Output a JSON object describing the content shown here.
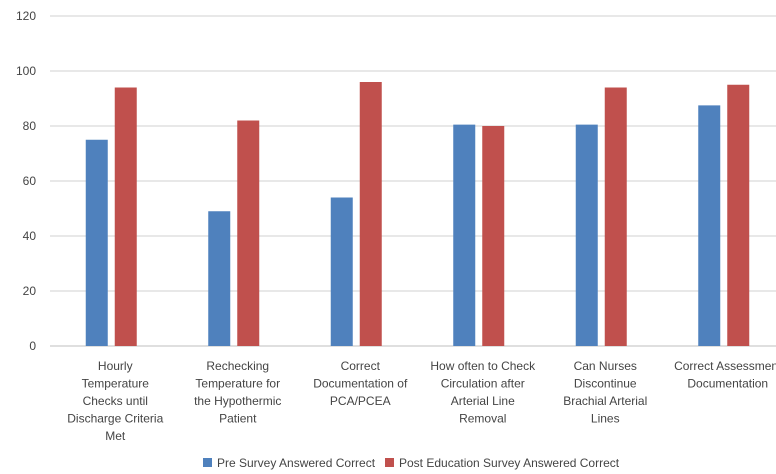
{
  "chart_data": {
    "type": "bar",
    "categories": [
      [
        "Hourly",
        "Temperature",
        "Checks until",
        "Discharge Criteria",
        "Met"
      ],
      [
        "Rechecking",
        "Temperature for",
        "the Hypothermic",
        "Patient"
      ],
      [
        "Correct",
        "Documentation of",
        "PCA/PCEA"
      ],
      [
        "How often to Check",
        "Circulation after",
        "Arterial Line",
        "Removal"
      ],
      [
        "Can Nurses",
        "Discontinue",
        "Brachial Arterial",
        "Lines"
      ],
      [
        "Correct Assessment",
        "Documentation"
      ]
    ],
    "series": [
      {
        "name": "Pre Survey Answered Correct",
        "color": "#4f81bd",
        "values": [
          75,
          49,
          54,
          80.5,
          80.5,
          87.5
        ]
      },
      {
        "name": "Post Education Survey Answered Correct",
        "color": "#c0504d",
        "values": [
          94,
          82,
          96,
          80,
          94,
          95
        ]
      }
    ],
    "y_ticks": [
      "0",
      "20",
      "40",
      "60",
      "80",
      "100",
      "120"
    ],
    "ylim": [
      0,
      120
    ],
    "grid": true,
    "legend_position": "bottom-center"
  }
}
